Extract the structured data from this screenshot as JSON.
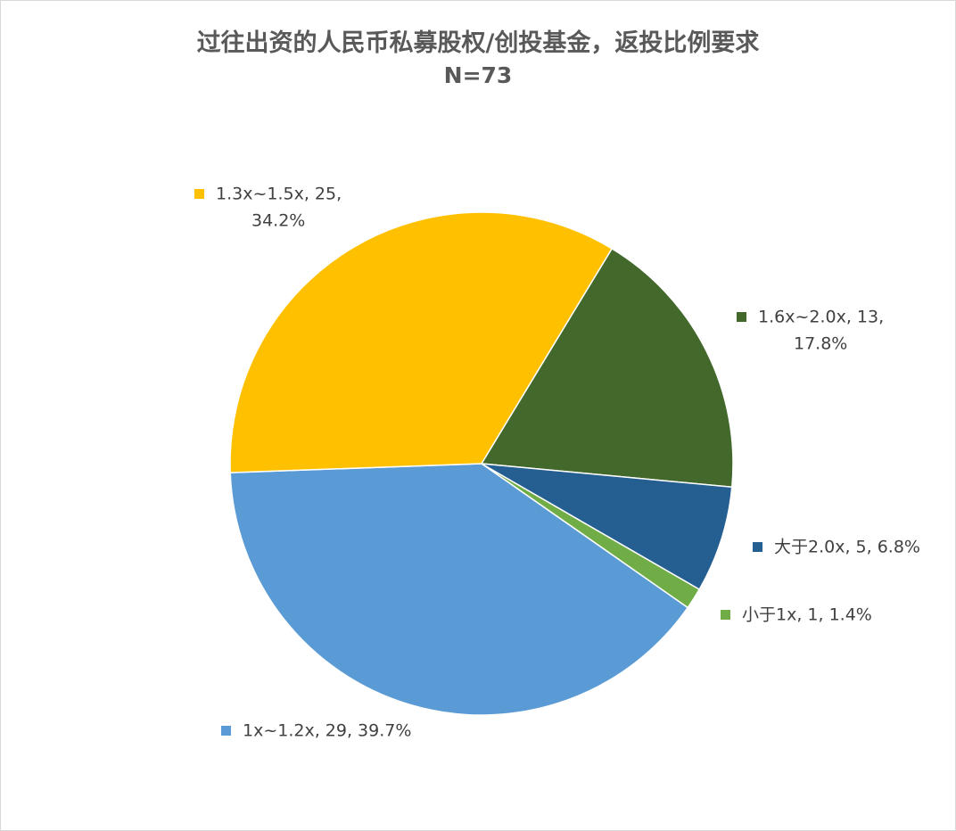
{
  "chart_data": {
    "type": "pie",
    "title": "过往出资的人民币私募股权/创投基金，返投比例要求",
    "subtitle": "N=73",
    "slices": [
      {
        "name": "小于1x",
        "value": 1,
        "percent": "1.4%",
        "color": "#70AD47"
      },
      {
        "name": "1x~1.2x",
        "value": 29,
        "percent": "39.7%",
        "color": "#5B9BD5"
      },
      {
        "name": "1.3x~1.5x",
        "value": 25,
        "percent": "34.2%",
        "color": "#FFC000"
      },
      {
        "name": "1.6x~2.0x",
        "value": 13,
        "percent": "17.8%",
        "color": "#43682B"
      },
      {
        "name": "大于2.0x",
        "value": 5,
        "percent": "6.8%",
        "color": "#255E91"
      }
    ],
    "legend": "none (data labels with color keys)"
  }
}
